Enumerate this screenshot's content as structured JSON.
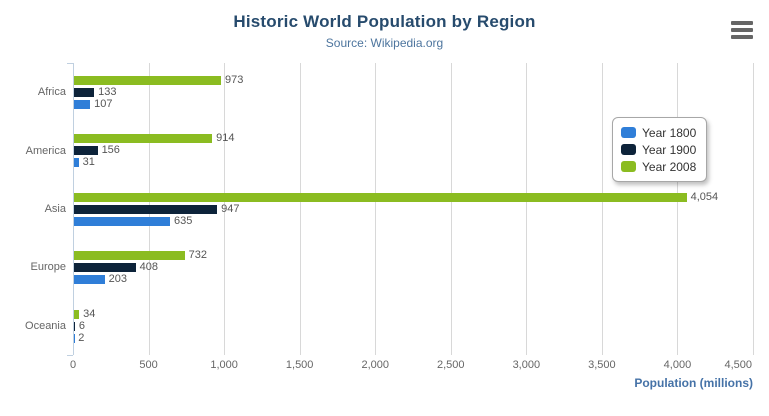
{
  "header": {
    "title": "Historic World Population by Region",
    "subtitle": "Source: Wikipedia.org"
  },
  "icons": {
    "menu": "hamburger-menu-icon"
  },
  "chart_data": {
    "type": "bar",
    "orientation": "horizontal",
    "title": "Historic World Population by Region",
    "subtitle": "Source: Wikipedia.org",
    "categories": [
      "Africa",
      "America",
      "Asia",
      "Europe",
      "Oceania"
    ],
    "series": [
      {
        "name": "Year 1800",
        "color": "#2f7ed8",
        "values": [
          107,
          31,
          635,
          203,
          2
        ]
      },
      {
        "name": "Year 1900",
        "color": "#0d233a",
        "values": [
          133,
          156,
          947,
          408,
          6
        ]
      },
      {
        "name": "Year 2008",
        "color": "#8bbc21",
        "values": [
          973,
          914,
          4054,
          732,
          34
        ]
      }
    ],
    "bar_order_top_to_bottom": [
      "Year 2008",
      "Year 1900",
      "Year 1800"
    ],
    "data_labels_visible": true,
    "xlabel": "Population (millions)",
    "xlim": [
      0,
      4500
    ],
    "tick_interval": 500,
    "tick_labels": [
      "0",
      "500",
      "1,000",
      "1,500",
      "2,000",
      "2,500",
      "3,000",
      "3,500",
      "4,000",
      "4,500"
    ],
    "grid": "vertical-only",
    "legend_position": "right-floating",
    "legend_items": [
      "Year 1800",
      "Year 1900",
      "Year 2008"
    ]
  },
  "colors": {
    "title": "#274b6d",
    "subtitle": "#4d759e",
    "axis_title": "#4572a7",
    "axis_labels": "#666666",
    "data_labels": "#555555",
    "gridline": "#d8d8d8",
    "axis_line": "#c0d0e0",
    "legend_text": "#333333",
    "menu_icon": "#666666"
  }
}
